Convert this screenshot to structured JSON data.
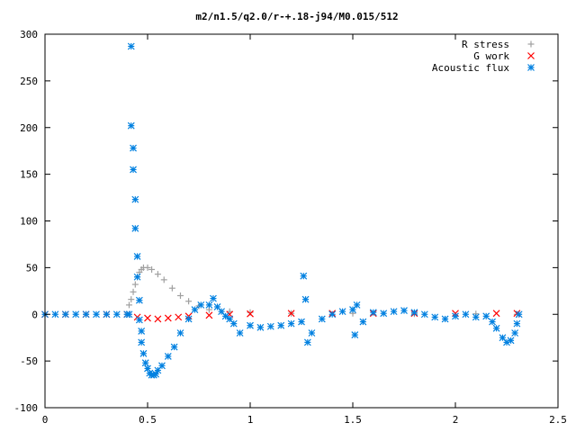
{
  "chart_data": {
    "type": "scatter",
    "title": "m2/n1.5/q2.0/r-+.18-j94/M0.015/512",
    "xlabel": "",
    "ylabel": "",
    "xlim": [
      0,
      2.5
    ],
    "ylim": [
      -100,
      300
    ],
    "x_ticks": [
      "0",
      "0.5",
      "1",
      "1.5",
      "2",
      "2.5"
    ],
    "y_ticks": [
      "-100",
      "-50",
      "0",
      "50",
      "100",
      "150",
      "200",
      "250",
      "300"
    ],
    "grid": false,
    "legend_position": "top-right",
    "series": [
      {
        "name": "R stress",
        "marker": "plus",
        "color": "#a0a0a0",
        "points": [
          [
            0,
            0
          ],
          [
            0.1,
            0
          ],
          [
            0.2,
            0
          ],
          [
            0.3,
            0
          ],
          [
            0.4,
            0
          ],
          [
            0.41,
            10
          ],
          [
            0.42,
            16
          ],
          [
            0.43,
            24
          ],
          [
            0.44,
            32
          ],
          [
            0.45,
            40
          ],
          [
            0.46,
            45
          ],
          [
            0.47,
            48
          ],
          [
            0.48,
            50
          ],
          [
            0.5,
            50
          ],
          [
            0.52,
            48
          ],
          [
            0.55,
            43
          ],
          [
            0.58,
            37
          ],
          [
            0.62,
            28
          ],
          [
            0.66,
            20
          ],
          [
            0.7,
            14
          ],
          [
            0.75,
            9
          ],
          [
            0.8,
            5
          ],
          [
            0.9,
            3
          ],
          [
            1.0,
            2
          ],
          [
            1.2,
            1
          ],
          [
            1.5,
            1
          ],
          [
            1.8,
            0.5
          ],
          [
            2.1,
            0.5
          ],
          [
            2.3,
            0
          ]
        ]
      },
      {
        "name": "G work",
        "marker": "cross",
        "color": "#ff0000",
        "points": [
          [
            0,
            0
          ],
          [
            0.1,
            0
          ],
          [
            0.2,
            0
          ],
          [
            0.3,
            0
          ],
          [
            0.4,
            0
          ],
          [
            0.45,
            -3
          ],
          [
            0.5,
            -4
          ],
          [
            0.55,
            -5
          ],
          [
            0.6,
            -4
          ],
          [
            0.65,
            -3
          ],
          [
            0.7,
            -2
          ],
          [
            0.8,
            -1
          ],
          [
            0.9,
            0
          ],
          [
            1.0,
            0.5
          ],
          [
            1.2,
            1
          ],
          [
            1.4,
            1
          ],
          [
            1.6,
            1
          ],
          [
            1.8,
            1
          ],
          [
            2.0,
            1
          ],
          [
            2.2,
            1
          ],
          [
            2.3,
            1
          ]
        ]
      },
      {
        "name": "Acoustic flux",
        "marker": "star",
        "color": "#0080e0",
        "points": [
          [
            0,
            0
          ],
          [
            0.05,
            0
          ],
          [
            0.1,
            0
          ],
          [
            0.15,
            0
          ],
          [
            0.2,
            0
          ],
          [
            0.25,
            0
          ],
          [
            0.3,
            0
          ],
          [
            0.35,
            0
          ],
          [
            0.4,
            0
          ],
          [
            0.41,
            0
          ],
          [
            0.42,
            287
          ],
          [
            0.42,
            202
          ],
          [
            0.43,
            178
          ],
          [
            0.43,
            155
          ],
          [
            0.44,
            123
          ],
          [
            0.44,
            92
          ],
          [
            0.45,
            62
          ],
          [
            0.45,
            40
          ],
          [
            0.46,
            15
          ],
          [
            0.46,
            -6
          ],
          [
            0.47,
            -18
          ],
          [
            0.47,
            -30
          ],
          [
            0.48,
            -42
          ],
          [
            0.49,
            -52
          ],
          [
            0.5,
            -58
          ],
          [
            0.51,
            -63
          ],
          [
            0.52,
            -65
          ],
          [
            0.53,
            -65
          ],
          [
            0.54,
            -64
          ],
          [
            0.55,
            -60
          ],
          [
            0.57,
            -55
          ],
          [
            0.6,
            -45
          ],
          [
            0.63,
            -35
          ],
          [
            0.66,
            -20
          ],
          [
            0.7,
            -5
          ],
          [
            0.73,
            5
          ],
          [
            0.76,
            10
          ],
          [
            0.8,
            10
          ],
          [
            0.82,
            17
          ],
          [
            0.84,
            8
          ],
          [
            0.86,
            3
          ],
          [
            0.88,
            -2
          ],
          [
            0.9,
            -5
          ],
          [
            0.92,
            -10
          ],
          [
            0.95,
            -20
          ],
          [
            1.0,
            -12
          ],
          [
            1.05,
            -14
          ],
          [
            1.1,
            -13
          ],
          [
            1.15,
            -12
          ],
          [
            1.2,
            -10
          ],
          [
            1.25,
            -8
          ],
          [
            1.26,
            41
          ],
          [
            1.27,
            16
          ],
          [
            1.28,
            -30
          ],
          [
            1.3,
            -20
          ],
          [
            1.35,
            -5
          ],
          [
            1.4,
            0
          ],
          [
            1.45,
            3
          ],
          [
            1.5,
            5
          ],
          [
            1.51,
            -22
          ],
          [
            1.52,
            10
          ],
          [
            1.55,
            -8
          ],
          [
            1.6,
            2
          ],
          [
            1.65,
            1
          ],
          [
            1.7,
            3
          ],
          [
            1.75,
            4
          ],
          [
            1.8,
            2
          ],
          [
            1.85,
            0
          ],
          [
            1.9,
            -3
          ],
          [
            1.95,
            -5
          ],
          [
            2.0,
            -2
          ],
          [
            2.05,
            0
          ],
          [
            2.1,
            -3
          ],
          [
            2.15,
            -2
          ],
          [
            2.18,
            -8
          ],
          [
            2.2,
            -15
          ],
          [
            2.23,
            -25
          ],
          [
            2.25,
            -30
          ],
          [
            2.27,
            -28
          ],
          [
            2.29,
            -20
          ],
          [
            2.3,
            -10
          ],
          [
            2.31,
            0
          ]
        ]
      }
    ]
  }
}
